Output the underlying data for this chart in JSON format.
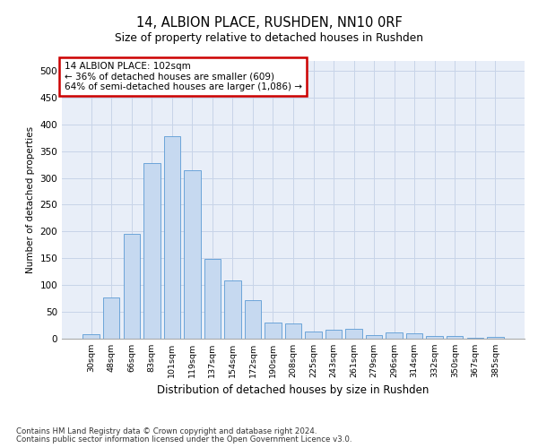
{
  "title": "14, ALBION PLACE, RUSHDEN, NN10 0RF",
  "subtitle": "Size of property relative to detached houses in Rushden",
  "xlabel": "Distribution of detached houses by size in Rushden",
  "ylabel": "Number of detached properties",
  "categories": [
    "30sqm",
    "48sqm",
    "66sqm",
    "83sqm",
    "101sqm",
    "119sqm",
    "137sqm",
    "154sqm",
    "172sqm",
    "190sqm",
    "208sqm",
    "225sqm",
    "243sqm",
    "261sqm",
    "279sqm",
    "296sqm",
    "314sqm",
    "332sqm",
    "350sqm",
    "367sqm",
    "385sqm"
  ],
  "values": [
    7,
    77,
    195,
    328,
    378,
    315,
    148,
    108,
    72,
    29,
    28,
    13,
    16,
    18,
    6,
    11,
    10,
    5,
    4,
    1,
    2
  ],
  "bar_color": "#c6d9f0",
  "bar_edge_color": "#5b9bd5",
  "annotation_text": "14 ALBION PLACE: 102sqm\n← 36% of detached houses are smaller (609)\n64% of semi-detached houses are larger (1,086) →",
  "annotation_box_color": "#ffffff",
  "annotation_box_edge_color": "#cc0000",
  "footnote1": "Contains HM Land Registry data © Crown copyright and database right 2024.",
  "footnote2": "Contains public sector information licensed under the Open Government Licence v3.0.",
  "ylim": [
    0,
    520
  ],
  "yticks": [
    0,
    50,
    100,
    150,
    200,
    250,
    300,
    350,
    400,
    450,
    500
  ],
  "grid_color": "#c8d4e8",
  "background_color": "#e8eef8"
}
